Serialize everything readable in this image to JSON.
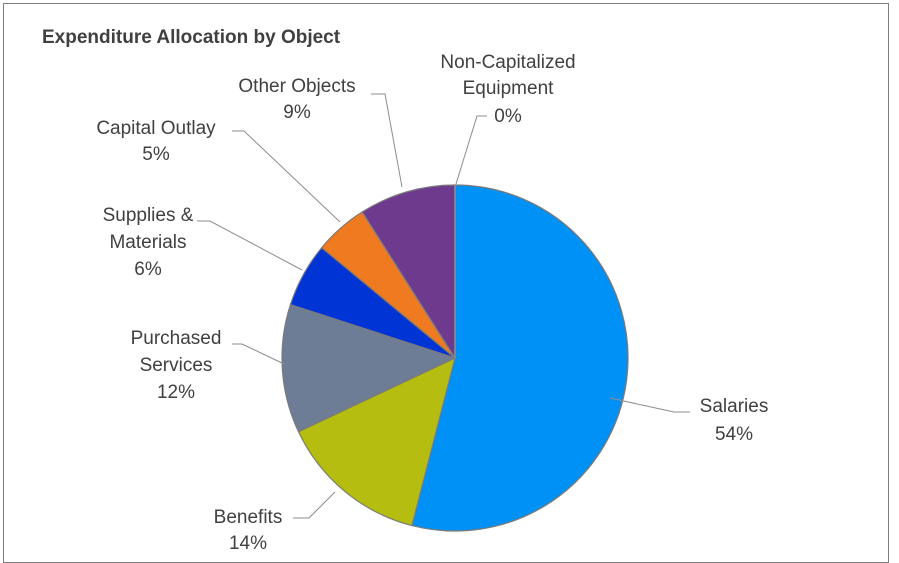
{
  "chart_data": {
    "type": "pie",
    "title": "Expenditure Allocation by Object",
    "slices": [
      {
        "name": "Salaries",
        "value": 54,
        "label": "54%",
        "color": "#0091f6"
      },
      {
        "name": "Benefits",
        "value": 14,
        "label": "14%",
        "color": "#b5be10"
      },
      {
        "name": "Purchased Services",
        "value": 12,
        "label": "12%",
        "color": "#6e7d96"
      },
      {
        "name": "Supplies & Materials",
        "value": 6,
        "label": "6%",
        "color": "#0034d4"
      },
      {
        "name": "Capital Outlay",
        "value": 5,
        "label": "5%",
        "color": "#f07a20"
      },
      {
        "name": "Other Objects",
        "value": 9,
        "label": "9%",
        "color": "#6e3a8e"
      },
      {
        "name": "Non-Capitalized Equipment",
        "value": 0,
        "label": "0%",
        "color": "#8e8e8e"
      }
    ],
    "legend": "none",
    "start_angle": "12 o'clock",
    "direction": "clockwise"
  }
}
